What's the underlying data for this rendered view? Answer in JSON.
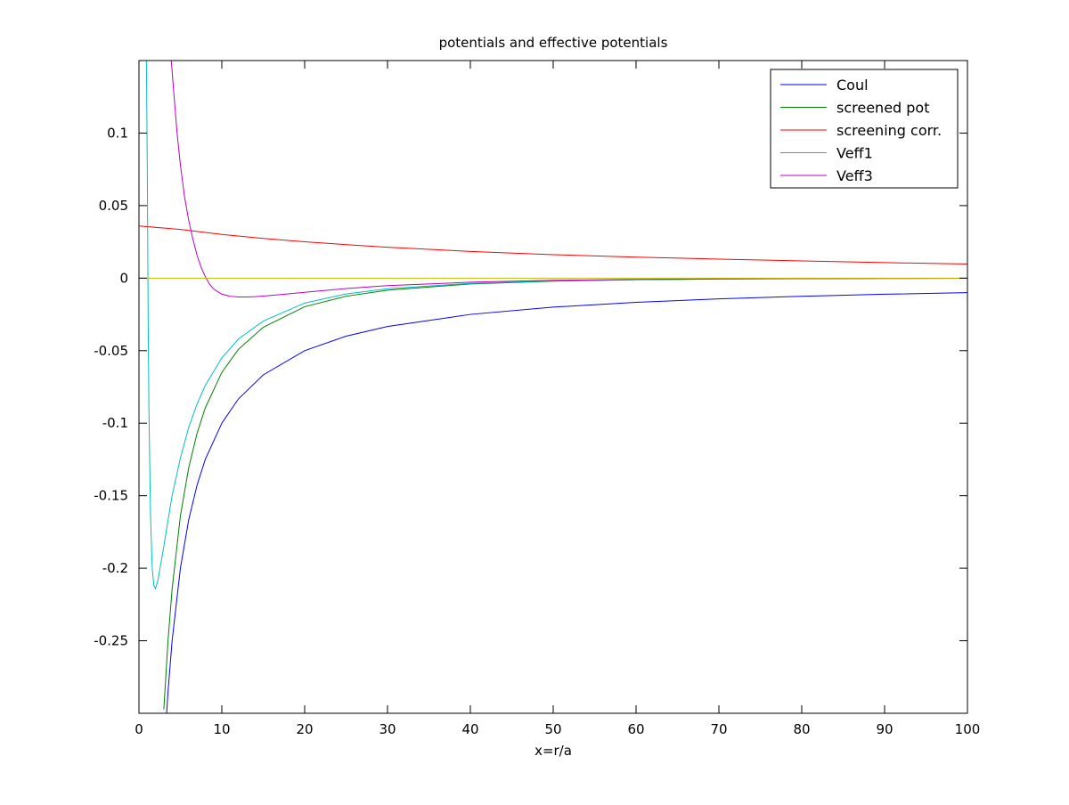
{
  "chart_data": {
    "type": "line",
    "title": "potentials and effective potentials",
    "xlabel": "x=r/a",
    "ylabel": "",
    "xlim": [
      0,
      100
    ],
    "ylim": [
      -0.3,
      0.15
    ],
    "xticks": [
      0,
      10,
      20,
      30,
      40,
      50,
      60,
      70,
      80,
      90,
      100
    ],
    "xtick_labels": [
      "0",
      "10",
      "20",
      "30",
      "40",
      "50",
      "60",
      "70",
      "80",
      "90",
      "100"
    ],
    "yticks": [
      0.1,
      0.05,
      0,
      -0.05,
      -0.1,
      -0.15,
      -0.2,
      -0.25
    ],
    "ytick_labels": [
      "0.1",
      "0.05",
      "0",
      "-0.05",
      "-0.1",
      "-0.15",
      "-0.2",
      "-0.25"
    ],
    "grid": false,
    "legend_position": "top-right",
    "series": [
      {
        "name": "Coul",
        "color": "#0000ff",
        "in_legend": true,
        "x": [
          3.2,
          3.5,
          4,
          5,
          6,
          7,
          8,
          10,
          12,
          15,
          20,
          25,
          30,
          40,
          50,
          60,
          70,
          80,
          90,
          100
        ],
        "y": [
          -0.3125,
          -0.2857,
          -0.25,
          -0.2,
          -0.1667,
          -0.1429,
          -0.125,
          -0.1,
          -0.0833,
          -0.0667,
          -0.05,
          -0.04,
          -0.0333,
          -0.025,
          -0.02,
          -0.0167,
          -0.0143,
          -0.0125,
          -0.0111,
          -0.01
        ]
      },
      {
        "name": "screened pot",
        "color": "#008000",
        "in_legend": true,
        "x": [
          3.0,
          3.5,
          4,
          5,
          6,
          7,
          8,
          10,
          12,
          15,
          20,
          25,
          30,
          40,
          50,
          60,
          70,
          80,
          90,
          100
        ],
        "y": [
          -0.2973,
          -0.2503,
          -0.2143,
          -0.1639,
          -0.1308,
          -0.1072,
          -0.0895,
          -0.065,
          -0.0491,
          -0.0339,
          -0.0197,
          -0.0125,
          -0.0083,
          -0.004,
          -0.0021,
          -0.0011,
          -0.0006,
          -0.0004,
          -0.0002,
          -0.0001
        ]
      },
      {
        "name": "screening corr.",
        "color": "#ff0000",
        "in_legend": true,
        "x": [
          0,
          5,
          10,
          15,
          20,
          25,
          30,
          40,
          50,
          60,
          70,
          80,
          90,
          100
        ],
        "y": [
          0.036,
          0.0336,
          0.0301,
          0.0274,
          0.0251,
          0.0231,
          0.0213,
          0.0184,
          0.0162,
          0.0145,
          0.0131,
          0.0119,
          0.0107,
          0.0097
        ]
      },
      {
        "name": "Veff1",
        "color": "#00bfbf",
        "in_legend": true,
        "x": [
          0.9,
          1.0,
          1.1,
          1.2,
          1.4,
          1.6,
          1.8,
          2.0,
          2.3,
          2.6,
          3.0,
          3.5,
          4,
          5,
          6,
          7,
          8,
          10,
          12,
          15,
          20,
          25,
          30,
          40,
          50,
          60,
          70,
          80,
          90,
          100
        ],
        "y": [
          0.15,
          0.08,
          -0.02,
          -0.09,
          -0.165,
          -0.2,
          -0.212,
          -0.214,
          -0.208,
          -0.198,
          -0.185,
          -0.167,
          -0.15,
          -0.124,
          -0.103,
          -0.087,
          -0.074,
          -0.055,
          -0.042,
          -0.0296,
          -0.0172,
          -0.0109,
          -0.0073,
          -0.0036,
          -0.0019,
          -0.001,
          -0.0006,
          -0.0003,
          -0.0002,
          -0.0001
        ]
      },
      {
        "name": "Veff3",
        "color": "#bf00bf",
        "in_legend": true,
        "x": [
          3.9,
          4.2,
          4.6,
          5,
          5.5,
          6,
          6.5,
          7,
          7.5,
          8,
          8.5,
          9,
          10,
          11,
          12,
          13,
          14,
          15,
          17,
          20,
          25,
          30,
          40,
          50,
          60,
          70,
          80,
          90,
          100
        ],
        "y": [
          0.15,
          0.128,
          0.1,
          0.078,
          0.056,
          0.04,
          0.027,
          0.016,
          0.0075,
          0.001,
          -0.004,
          -0.0075,
          -0.011,
          -0.0125,
          -0.013,
          -0.013,
          -0.0128,
          -0.0124,
          -0.0114,
          -0.0098,
          -0.0072,
          -0.0052,
          -0.0028,
          -0.0015,
          -0.0009,
          -0.0005,
          -0.0003,
          -0.0002,
          -0.0001
        ]
      },
      {
        "name": "",
        "color": "#bfbf00",
        "in_legend": false,
        "x": [
          0,
          100
        ],
        "y": [
          0,
          0
        ]
      }
    ]
  }
}
